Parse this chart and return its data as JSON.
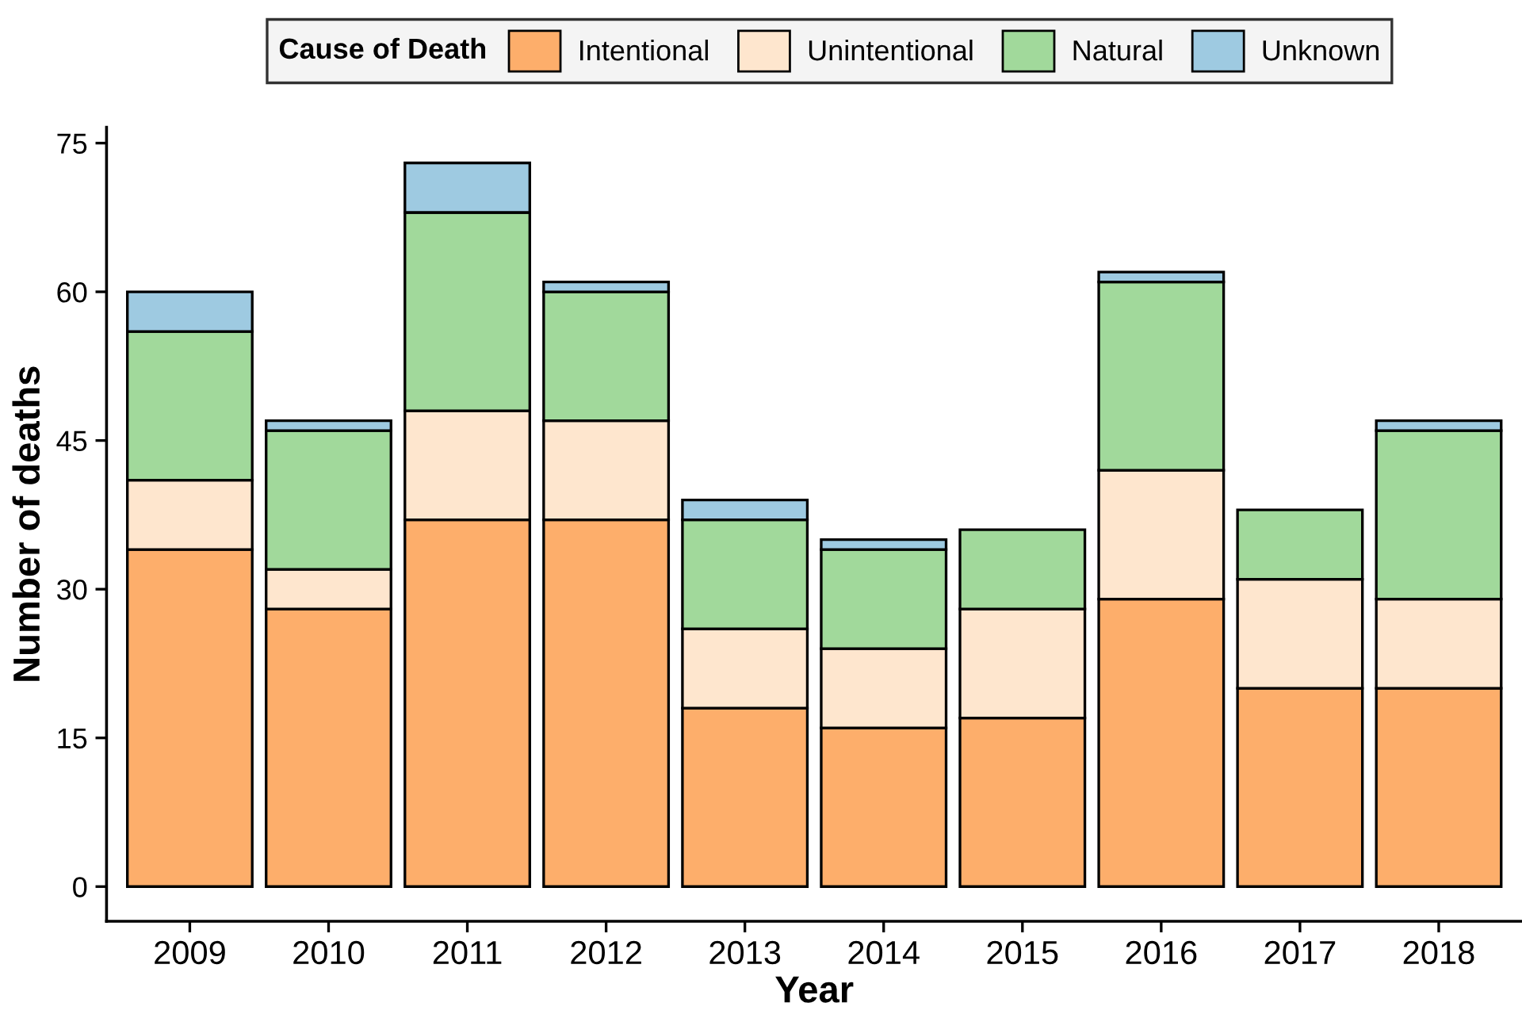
{
  "chart_data": {
    "type": "bar",
    "stacked": true,
    "xlabel": "Year",
    "ylabel": "Number of deaths",
    "legend_title": "Cause of Death",
    "legend": "top",
    "categories": [
      "2009",
      "2010",
      "2011",
      "2012",
      "2013",
      "2014",
      "2015",
      "2016",
      "2017",
      "2018"
    ],
    "ylim": [
      -3.5,
      76.6
    ],
    "yticks": [
      0,
      15,
      30,
      45,
      60,
      75
    ],
    "grid": false,
    "series": [
      {
        "name": "Intentional",
        "color": "#fdae6b",
        "values": [
          34,
          28,
          37,
          37,
          18,
          16,
          17,
          29,
          20,
          20
        ]
      },
      {
        "name": "Unintentional",
        "color": "#fee6ce",
        "values": [
          7,
          4,
          11,
          10,
          8,
          8,
          11,
          13,
          11,
          9
        ]
      },
      {
        "name": "Natural",
        "color": "#a1d99b",
        "values": [
          15,
          14,
          20,
          13,
          11,
          10,
          8,
          19,
          7,
          17
        ]
      },
      {
        "name": "Unknown",
        "color": "#9ecae1",
        "values": [
          4,
          1,
          5,
          1,
          2,
          1,
          null,
          1,
          null,
          1
        ]
      }
    ]
  }
}
